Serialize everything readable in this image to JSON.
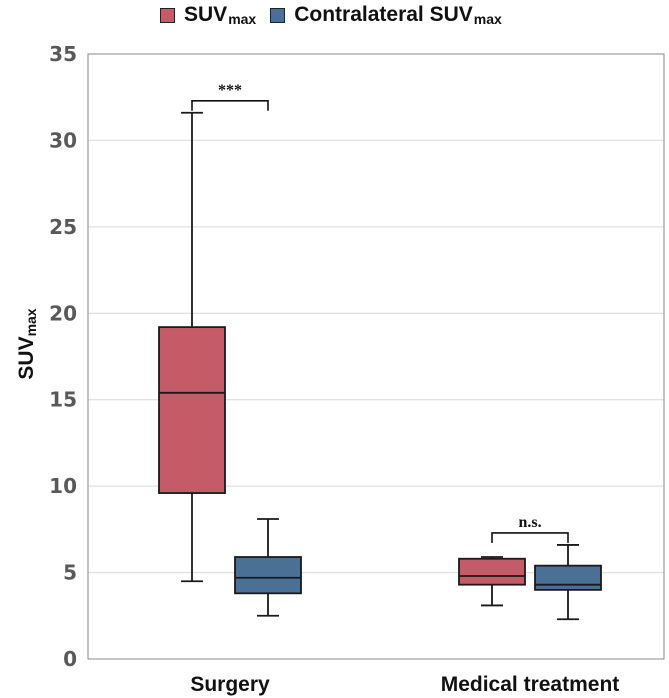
{
  "chart_data": {
    "type": "boxplot",
    "title": "",
    "ylabel_base": "SUV",
    "ylabel_sub": "max",
    "ylim": [
      0,
      35
    ],
    "yticks": [
      0,
      5,
      10,
      15,
      20,
      25,
      30,
      35
    ],
    "grid": true,
    "legend_position": "top",
    "categories": [
      "Surgery",
      "Medical treatment"
    ],
    "series": [
      {
        "name_base": "SUV",
        "name_sub": "max",
        "color": "#c45b67",
        "boxes": [
          {
            "min": 4.5,
            "q1": 9.6,
            "median": 15.4,
            "q3": 19.2,
            "max": 31.6
          },
          {
            "min": 3.1,
            "q1": 4.3,
            "median": 4.8,
            "q3": 5.8,
            "max": 5.9
          }
        ]
      },
      {
        "name_base": "Contralateral SUV",
        "name_sub": "max",
        "color": "#4a7096",
        "boxes": [
          {
            "min": 2.5,
            "q1": 3.8,
            "median": 4.7,
            "q3": 5.9,
            "max": 8.1
          },
          {
            "min": 2.3,
            "q1": 4.0,
            "median": 4.3,
            "q3": 5.4,
            "max": 6.6
          }
        ]
      }
    ],
    "annotations": [
      {
        "category": "Surgery",
        "text": "***"
      },
      {
        "category": "Medical treatment",
        "text": "n.s."
      }
    ]
  }
}
